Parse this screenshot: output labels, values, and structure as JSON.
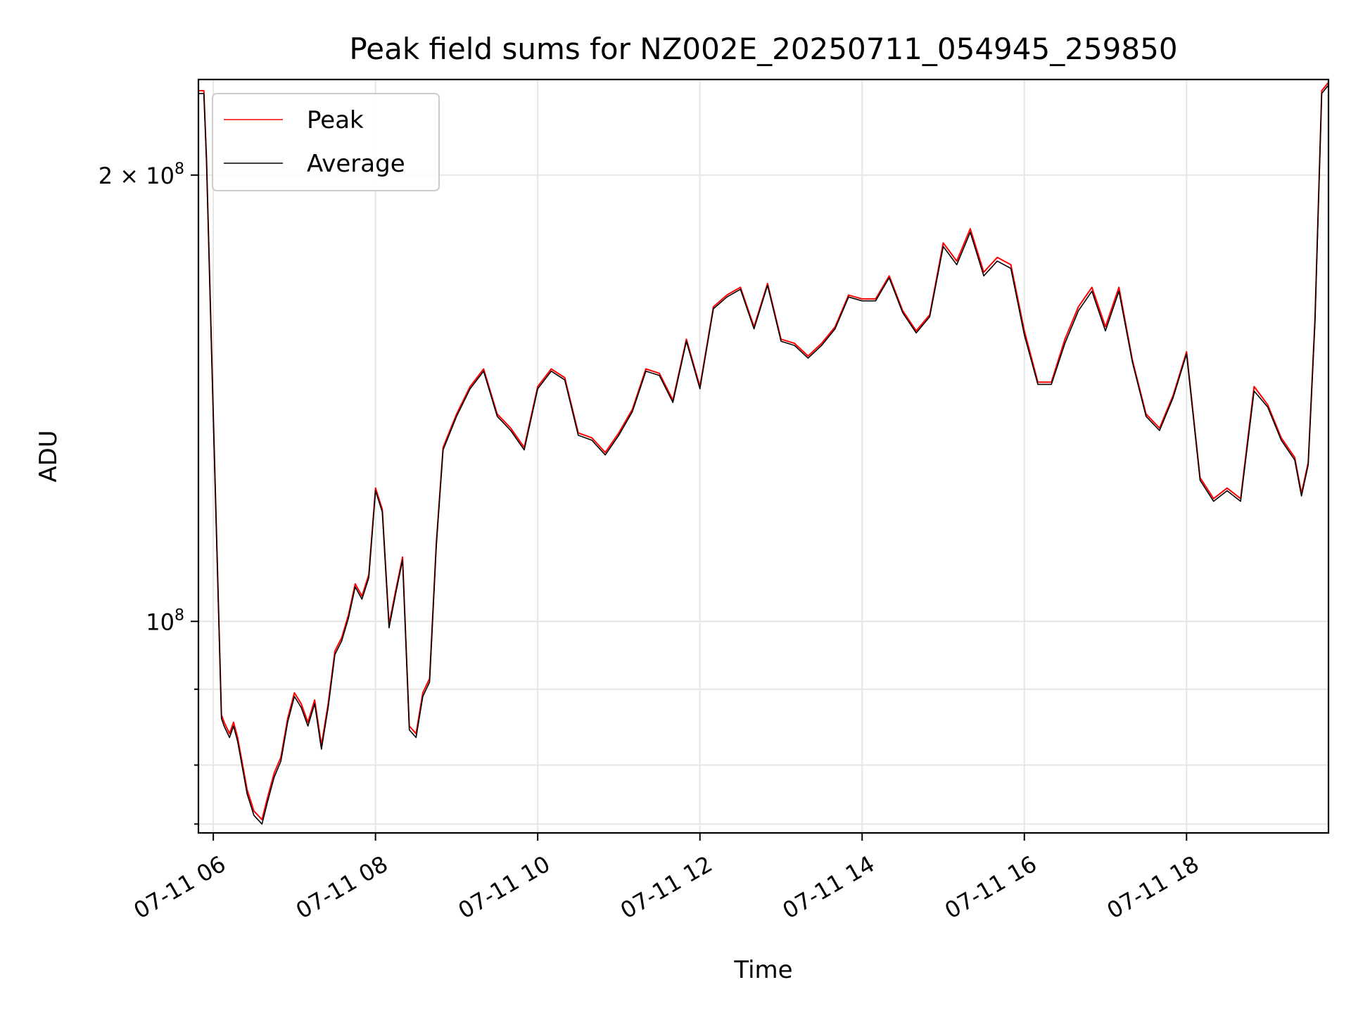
{
  "chart_data": {
    "type": "line",
    "title": "Peak field sums for NZ002E_20250711_054945_259850",
    "xlabel": "Time",
    "ylabel": "ADU",
    "y_scale": "log",
    "grid": true,
    "legend_position": "top-left",
    "xlim": [
      "2025-07-11T05:49",
      "2025-07-11T19:45"
    ],
    "ylim": [
      72000000,
      232000000
    ],
    "x_ticks": [
      {
        "value": "2025-07-11T06:00",
        "label": "07-11 06"
      },
      {
        "value": "2025-07-11T08:00",
        "label": "07-11 08"
      },
      {
        "value": "2025-07-11T10:00",
        "label": "07-11 10"
      },
      {
        "value": "2025-07-11T12:00",
        "label": "07-11 12"
      },
      {
        "value": "2025-07-11T14:00",
        "label": "07-11 14"
      },
      {
        "value": "2025-07-11T16:00",
        "label": "07-11 16"
      },
      {
        "value": "2025-07-11T18:00",
        "label": "07-11 18"
      }
    ],
    "y_ticks_major": [
      {
        "value": 100000000,
        "base": "10",
        "exp": "8",
        "mant": ""
      },
      {
        "value": 200000000,
        "base": "10",
        "exp": "8",
        "mant": "2 × "
      }
    ],
    "y_ticks_minor": [
      73000000,
      80000000,
      90000000
    ],
    "series": [
      {
        "name": "Peak",
        "color": "#ff0000",
        "x": [
          "2025-07-11T05:49",
          "2025-07-11T05:53",
          "2025-07-11T05:55",
          "2025-07-11T06:00",
          "2025-07-11T06:06",
          "2025-07-11T06:08",
          "2025-07-11T06:12",
          "2025-07-11T06:15",
          "2025-07-11T06:18",
          "2025-07-11T06:25",
          "2025-07-11T06:30",
          "2025-07-11T06:36",
          "2025-07-11T06:40",
          "2025-07-11T06:45",
          "2025-07-11T06:50",
          "2025-07-11T06:55",
          "2025-07-11T07:00",
          "2025-07-11T07:05",
          "2025-07-11T07:10",
          "2025-07-11T07:15",
          "2025-07-11T07:20",
          "2025-07-11T07:25",
          "2025-07-11T07:30",
          "2025-07-11T07:35",
          "2025-07-11T07:40",
          "2025-07-11T07:45",
          "2025-07-11T07:50",
          "2025-07-11T07:55",
          "2025-07-11T08:00",
          "2025-07-11T08:05",
          "2025-07-11T08:10",
          "2025-07-11T08:15",
          "2025-07-11T08:20",
          "2025-07-11T08:25",
          "2025-07-11T08:30",
          "2025-07-11T08:35",
          "2025-07-11T08:40",
          "2025-07-11T08:45",
          "2025-07-11T08:50",
          "2025-07-11T09:00",
          "2025-07-11T09:10",
          "2025-07-11T09:20",
          "2025-07-11T09:30",
          "2025-07-11T09:40",
          "2025-07-11T09:50",
          "2025-07-11T10:00",
          "2025-07-11T10:10",
          "2025-07-11T10:20",
          "2025-07-11T10:30",
          "2025-07-11T10:40",
          "2025-07-11T10:50",
          "2025-07-11T11:00",
          "2025-07-11T11:10",
          "2025-07-11T11:20",
          "2025-07-11T11:30",
          "2025-07-11T11:40",
          "2025-07-11T11:50",
          "2025-07-11T12:00",
          "2025-07-11T12:10",
          "2025-07-11T12:20",
          "2025-07-11T12:30",
          "2025-07-11T12:40",
          "2025-07-11T12:50",
          "2025-07-11T13:00",
          "2025-07-11T13:10",
          "2025-07-11T13:20",
          "2025-07-11T13:30",
          "2025-07-11T13:40",
          "2025-07-11T13:50",
          "2025-07-11T14:00",
          "2025-07-11T14:10",
          "2025-07-11T14:20",
          "2025-07-11T14:30",
          "2025-07-11T14:40",
          "2025-07-11T14:50",
          "2025-07-11T15:00",
          "2025-07-11T15:10",
          "2025-07-11T15:20",
          "2025-07-11T15:30",
          "2025-07-11T15:40",
          "2025-07-11T15:50",
          "2025-07-11T16:00",
          "2025-07-11T16:10",
          "2025-07-11T16:20",
          "2025-07-11T16:30",
          "2025-07-11T16:40",
          "2025-07-11T16:50",
          "2025-07-11T17:00",
          "2025-07-11T17:10",
          "2025-07-11T17:20",
          "2025-07-11T17:30",
          "2025-07-11T17:40",
          "2025-07-11T17:50",
          "2025-07-11T18:00",
          "2025-07-11T18:10",
          "2025-07-11T18:20",
          "2025-07-11T18:30",
          "2025-07-11T18:40",
          "2025-07-11T18:50",
          "2025-07-11T19:00",
          "2025-07-11T19:10",
          "2025-07-11T19:20",
          "2025-07-11T19:25",
          "2025-07-11T19:30",
          "2025-07-11T19:35",
          "2025-07-11T19:40",
          "2025-07-11T19:45"
        ],
        "y": [
          228000000,
          228000000,
          205000000,
          138000000,
          86500000,
          85500000,
          84000000,
          85500000,
          83500000,
          77000000,
          74500000,
          73500000,
          76000000,
          79000000,
          81000000,
          86000000,
          89500000,
          88000000,
          85500000,
          88500000,
          82500000,
          88000000,
          95500000,
          97500000,
          101000000,
          106000000,
          104000000,
          107500000,
          123000000,
          119000000,
          99500000,
          105000000,
          110500000,
          85000000,
          84000000,
          89500000,
          91500000,
          113000000,
          131000000,
          138000000,
          144000000,
          148000000,
          138000000,
          135000000,
          131000000,
          144000000,
          148000000,
          146000000,
          134000000,
          133000000,
          130000000,
          134000000,
          139000000,
          148000000,
          147000000,
          141000000,
          155000000,
          144000000,
          163000000,
          166000000,
          168000000,
          158000000,
          169000000,
          155000000,
          154000000,
          151000000,
          154000000,
          158000000,
          166000000,
          165000000,
          165000000,
          171000000,
          162000000,
          157000000,
          161000000,
          180000000,
          175000000,
          184000000,
          172000000,
          176000000,
          174000000,
          157000000,
          145000000,
          145000000,
          155000000,
          163000000,
          168000000,
          158000000,
          168000000,
          150000000,
          138000000,
          135000000,
          142000000,
          152000000,
          125000000,
          121000000,
          123000000,
          121000000,
          144000000,
          140000000,
          133000000,
          129000000,
          122000000,
          128000000,
          160000000,
          228000000,
          231000000
        ]
      },
      {
        "name": "Average",
        "color": "#000000",
        "x": [
          "2025-07-11T05:49",
          "2025-07-11T05:53",
          "2025-07-11T05:55",
          "2025-07-11T06:00",
          "2025-07-11T06:06",
          "2025-07-11T06:08",
          "2025-07-11T06:12",
          "2025-07-11T06:15",
          "2025-07-11T06:18",
          "2025-07-11T06:25",
          "2025-07-11T06:30",
          "2025-07-11T06:36",
          "2025-07-11T06:40",
          "2025-07-11T06:45",
          "2025-07-11T06:50",
          "2025-07-11T06:55",
          "2025-07-11T07:00",
          "2025-07-11T07:05",
          "2025-07-11T07:10",
          "2025-07-11T07:15",
          "2025-07-11T07:20",
          "2025-07-11T07:25",
          "2025-07-11T07:30",
          "2025-07-11T07:35",
          "2025-07-11T07:40",
          "2025-07-11T07:45",
          "2025-07-11T07:50",
          "2025-07-11T07:55",
          "2025-07-11T08:00",
          "2025-07-11T08:05",
          "2025-07-11T08:10",
          "2025-07-11T08:15",
          "2025-07-11T08:20",
          "2025-07-11T08:25",
          "2025-07-11T08:30",
          "2025-07-11T08:35",
          "2025-07-11T08:40",
          "2025-07-11T08:45",
          "2025-07-11T08:50",
          "2025-07-11T09:00",
          "2025-07-11T09:10",
          "2025-07-11T09:20",
          "2025-07-11T09:30",
          "2025-07-11T09:40",
          "2025-07-11T09:50",
          "2025-07-11T10:00",
          "2025-07-11T10:10",
          "2025-07-11T10:20",
          "2025-07-11T10:30",
          "2025-07-11T10:40",
          "2025-07-11T10:50",
          "2025-07-11T11:00",
          "2025-07-11T11:10",
          "2025-07-11T11:20",
          "2025-07-11T11:30",
          "2025-07-11T11:40",
          "2025-07-11T11:50",
          "2025-07-11T12:00",
          "2025-07-11T12:10",
          "2025-07-11T12:20",
          "2025-07-11T12:30",
          "2025-07-11T12:40",
          "2025-07-11T12:50",
          "2025-07-11T13:00",
          "2025-07-11T13:10",
          "2025-07-11T13:20",
          "2025-07-11T13:30",
          "2025-07-11T13:40",
          "2025-07-11T13:50",
          "2025-07-11T14:00",
          "2025-07-11T14:10",
          "2025-07-11T14:20",
          "2025-07-11T14:30",
          "2025-07-11T14:40",
          "2025-07-11T14:50",
          "2025-07-11T15:00",
          "2025-07-11T15:10",
          "2025-07-11T15:20",
          "2025-07-11T15:30",
          "2025-07-11T15:40",
          "2025-07-11T15:50",
          "2025-07-11T16:00",
          "2025-07-11T16:10",
          "2025-07-11T16:20",
          "2025-07-11T16:30",
          "2025-07-11T16:40",
          "2025-07-11T16:50",
          "2025-07-11T17:00",
          "2025-07-11T17:10",
          "2025-07-11T17:20",
          "2025-07-11T17:30",
          "2025-07-11T17:40",
          "2025-07-11T17:50",
          "2025-07-11T18:00",
          "2025-07-11T18:10",
          "2025-07-11T18:20",
          "2025-07-11T18:30",
          "2025-07-11T18:40",
          "2025-07-11T18:50",
          "2025-07-11T19:00",
          "2025-07-11T19:10",
          "2025-07-11T19:20",
          "2025-07-11T19:25",
          "2025-07-11T19:30",
          "2025-07-11T19:35",
          "2025-07-11T19:40",
          "2025-07-11T19:45"
        ],
        "y": [
          227000000,
          227000000,
          204000000,
          137500000,
          86000000,
          85000000,
          83500000,
          85000000,
          83000000,
          76500000,
          74000000,
          73000000,
          75500000,
          78500000,
          80500000,
          85500000,
          89000000,
          87500000,
          85000000,
          88000000,
          82000000,
          87500000,
          95000000,
          97000000,
          100500000,
          105500000,
          103500000,
          107000000,
          122500000,
          118500000,
          99000000,
          104500000,
          110000000,
          84500000,
          83500000,
          89000000,
          91000000,
          112500000,
          130500000,
          137500000,
          143500000,
          147500000,
          137500000,
          134500000,
          130500000,
          143500000,
          147500000,
          145500000,
          133500000,
          132500000,
          129500000,
          133500000,
          138500000,
          147500000,
          146500000,
          140500000,
          154500000,
          143500000,
          162500000,
          165500000,
          167500000,
          157500000,
          168500000,
          154500000,
          153500000,
          150500000,
          153500000,
          157500000,
          165500000,
          164500000,
          164500000,
          170500000,
          161500000,
          156500000,
          160500000,
          179000000,
          174000000,
          183000000,
          171000000,
          175000000,
          173000000,
          156000000,
          144500000,
          144500000,
          154000000,
          162000000,
          167000000,
          157000000,
          167000000,
          149500000,
          137500000,
          134500000,
          141500000,
          151500000,
          124500000,
          120500000,
          122500000,
          120500000,
          143000000,
          139500000,
          132500000,
          128500000,
          121500000,
          127500000,
          159000000,
          227000000,
          230000000
        ]
      }
    ]
  }
}
